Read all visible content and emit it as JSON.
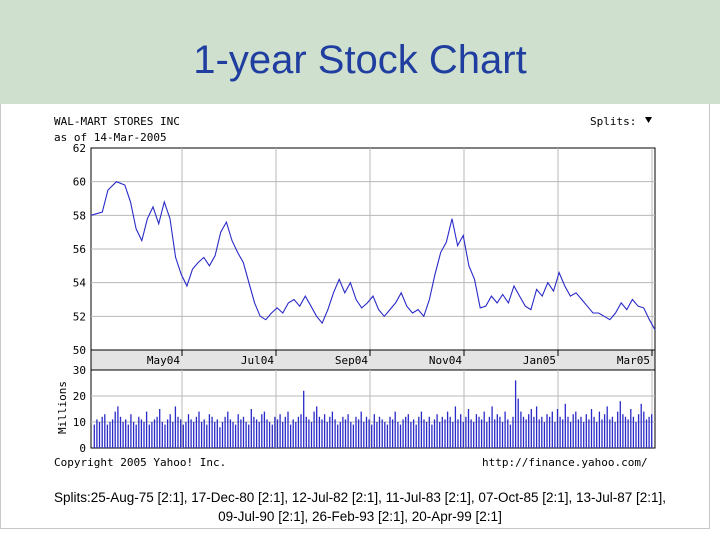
{
  "slide": {
    "title": "1-year Stock Chart",
    "splits_note_line1": "Splits:25-Aug-75 [2:1], 17-Dec-80 [2:1], 12-Jul-82 [2:1], 11-Jul-83 [2:1], 07-Oct-85 [2:1], 13-Jul-87 [2:1],",
    "splits_note_line2": "09-Jul-90 [2:1], 26-Feb-93 [2:1], 20-Apr-99 [2:1]"
  },
  "chart": {
    "company": "WAL-MART STORES INC",
    "as_of": "as of 14-Mar-2005",
    "splits_label": "Splits:",
    "copyright": "Copyright 2005 Yahoo! Inc.",
    "url": "http://finance.yahoo.com/",
    "volume_axis_label": "Millions"
  },
  "colors": {
    "line": "#2a2ac8",
    "grid": "#b8b8b8",
    "header_bg": "#cfe0cf",
    "title": "#1f3ea0"
  },
  "chart_data": {
    "type": "line",
    "price": {
      "ylim": [
        50,
        62
      ],
      "yticks": [
        "62",
        "60",
        "58",
        "56",
        "54",
        "52",
        "50"
      ],
      "xticks": [
        "May04",
        "Jul04",
        "Sep04",
        "Nov04",
        "Jan05",
        "Mar05"
      ],
      "points": [
        [
          0,
          58.0
        ],
        [
          0.02,
          58.2
        ],
        [
          0.03,
          59.5
        ],
        [
          0.045,
          60.0
        ],
        [
          0.06,
          59.8
        ],
        [
          0.07,
          58.8
        ],
        [
          0.08,
          57.2
        ],
        [
          0.09,
          56.5
        ],
        [
          0.1,
          57.8
        ],
        [
          0.11,
          58.5
        ],
        [
          0.12,
          57.5
        ],
        [
          0.13,
          58.8
        ],
        [
          0.14,
          57.8
        ],
        [
          0.15,
          55.5
        ],
        [
          0.16,
          54.5
        ],
        [
          0.17,
          53.8
        ],
        [
          0.18,
          54.8
        ],
        [
          0.19,
          55.2
        ],
        [
          0.2,
          55.5
        ],
        [
          0.21,
          55.0
        ],
        [
          0.22,
          55.6
        ],
        [
          0.23,
          57.0
        ],
        [
          0.24,
          57.6
        ],
        [
          0.25,
          56.5
        ],
        [
          0.26,
          55.8
        ],
        [
          0.27,
          55.2
        ],
        [
          0.28,
          54.0
        ],
        [
          0.29,
          52.8
        ],
        [
          0.3,
          52.0
        ],
        [
          0.31,
          51.8
        ],
        [
          0.32,
          52.2
        ],
        [
          0.33,
          52.5
        ],
        [
          0.34,
          52.2
        ],
        [
          0.35,
          52.8
        ],
        [
          0.36,
          53.0
        ],
        [
          0.37,
          52.6
        ],
        [
          0.38,
          53.2
        ],
        [
          0.39,
          52.6
        ],
        [
          0.4,
          52.0
        ],
        [
          0.41,
          51.6
        ],
        [
          0.42,
          52.4
        ],
        [
          0.43,
          53.4
        ],
        [
          0.44,
          54.2
        ],
        [
          0.45,
          53.4
        ],
        [
          0.46,
          54.0
        ],
        [
          0.47,
          53.0
        ],
        [
          0.48,
          52.5
        ],
        [
          0.49,
          52.8
        ],
        [
          0.5,
          53.2
        ],
        [
          0.51,
          52.4
        ],
        [
          0.52,
          52.0
        ],
        [
          0.53,
          52.4
        ],
        [
          0.54,
          52.8
        ],
        [
          0.55,
          53.4
        ],
        [
          0.56,
          52.6
        ],
        [
          0.57,
          52.2
        ],
        [
          0.58,
          52.4
        ],
        [
          0.59,
          52.0
        ],
        [
          0.6,
          53.0
        ],
        [
          0.61,
          54.5
        ],
        [
          0.62,
          55.8
        ],
        [
          0.63,
          56.4
        ],
        [
          0.64,
          57.8
        ],
        [
          0.65,
          56.2
        ],
        [
          0.66,
          56.8
        ],
        [
          0.67,
          55.0
        ],
        [
          0.68,
          54.2
        ],
        [
          0.69,
          52.5
        ],
        [
          0.7,
          52.6
        ],
        [
          0.71,
          53.2
        ],
        [
          0.72,
          52.8
        ],
        [
          0.73,
          53.3
        ],
        [
          0.74,
          52.8
        ],
        [
          0.75,
          53.8
        ],
        [
          0.76,
          53.2
        ],
        [
          0.77,
          52.6
        ],
        [
          0.78,
          52.4
        ],
        [
          0.79,
          53.6
        ],
        [
          0.8,
          53.2
        ],
        [
          0.81,
          54.0
        ],
        [
          0.82,
          53.5
        ],
        [
          0.83,
          54.6
        ],
        [
          0.84,
          53.8
        ],
        [
          0.85,
          53.2
        ],
        [
          0.86,
          53.4
        ],
        [
          0.87,
          53.0
        ],
        [
          0.88,
          52.6
        ],
        [
          0.89,
          52.2
        ],
        [
          0.9,
          52.2
        ],
        [
          0.91,
          52.0
        ],
        [
          0.92,
          51.8
        ],
        [
          0.93,
          52.2
        ],
        [
          0.94,
          52.8
        ],
        [
          0.95,
          52.4
        ],
        [
          0.96,
          53.0
        ],
        [
          0.97,
          52.6
        ],
        [
          0.98,
          52.5
        ],
        [
          0.99,
          51.8
        ],
        [
          1.0,
          51.2
        ]
      ]
    },
    "volume": {
      "ylim": [
        0,
        30
      ],
      "yticks": [
        "30",
        "20",
        "10",
        "0"
      ],
      "bars": [
        9,
        11,
        10,
        12,
        13,
        9,
        10,
        11,
        14,
        16,
        12,
        10,
        11,
        9,
        13,
        10,
        9,
        12,
        11,
        10,
        14,
        9,
        10,
        11,
        12,
        15,
        10,
        9,
        11,
        13,
        10,
        16,
        12,
        11,
        9,
        10,
        13,
        11,
        10,
        12,
        14,
        10,
        11,
        9,
        13,
        12,
        10,
        11,
        8,
        10,
        12,
        14,
        11,
        10,
        9,
        13,
        11,
        12,
        10,
        9,
        15,
        12,
        11,
        10,
        13,
        14,
        11,
        10,
        9,
        12,
        11,
        13,
        10,
        12,
        14,
        9,
        11,
        10,
        12,
        13,
        22,
        12,
        11,
        10,
        14,
        16,
        12,
        11,
        13,
        10,
        12,
        14,
        11,
        9,
        10,
        12,
        11,
        13,
        10,
        9,
        12,
        11,
        14,
        10,
        12,
        11,
        9,
        13,
        10,
        12,
        11,
        10,
        9,
        12,
        11,
        14,
        10,
        9,
        11,
        12,
        13,
        10,
        11,
        9,
        12,
        14,
        11,
        10,
        12,
        9,
        11,
        13,
        10,
        12,
        11,
        14,
        12,
        10,
        16,
        11,
        13,
        10,
        12,
        15,
        11,
        10,
        13,
        12,
        11,
        14,
        10,
        12,
        16,
        11,
        13,
        12,
        10,
        14,
        11,
        9,
        12,
        26,
        19,
        14,
        12,
        11,
        13,
        15,
        12,
        16,
        11,
        12,
        10,
        13,
        12,
        14,
        10,
        15,
        12,
        11,
        17,
        12,
        10,
        13,
        14,
        11,
        12,
        10,
        13,
        11,
        15,
        12,
        10,
        14,
        11,
        13,
        16,
        11,
        12,
        10,
        14,
        18,
        13,
        12,
        11,
        15,
        12,
        10,
        13,
        17,
        14,
        11,
        12,
        13
      ]
    }
  }
}
